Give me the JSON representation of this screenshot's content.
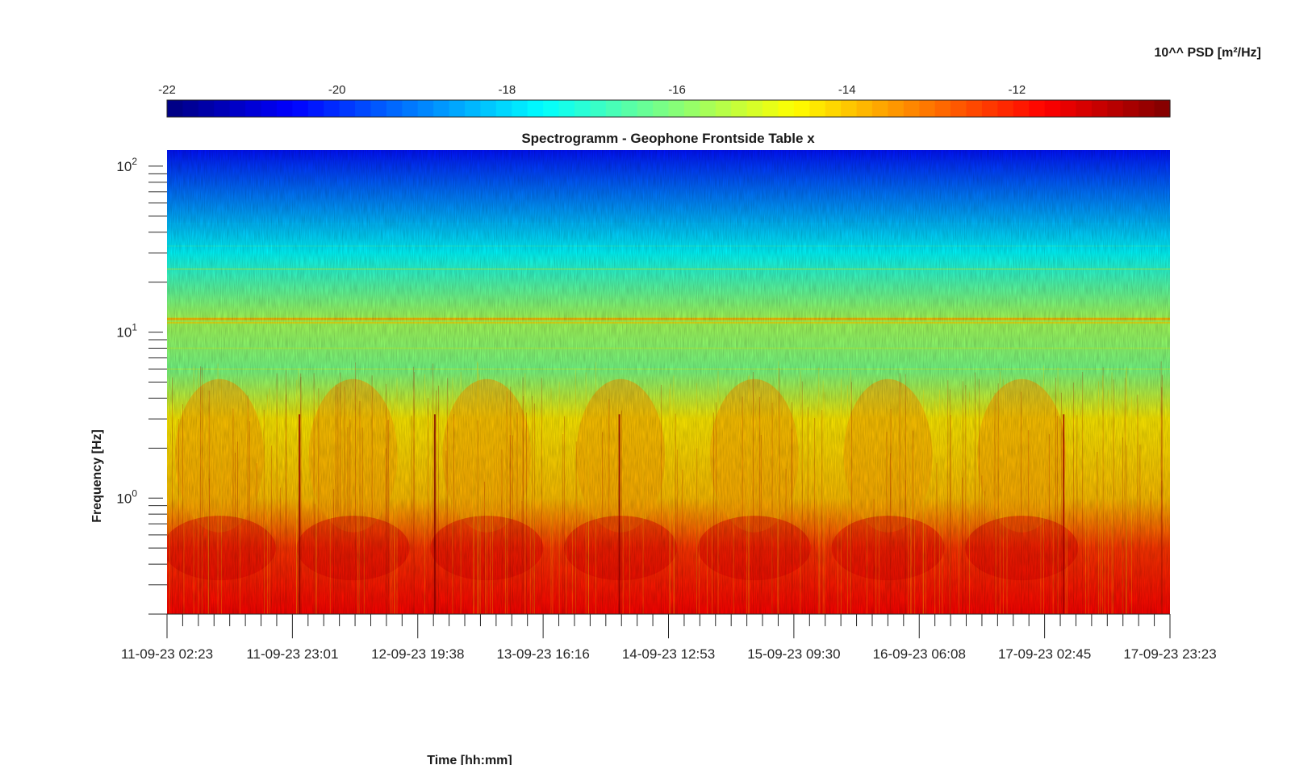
{
  "chart_data": {
    "type": "heatmap",
    "title": "Spectrogramm - Geophone Frontside Table x",
    "xlabel": "Time [hh:mm]",
    "ylabel": "Frequency [Hz]",
    "colorbar_label": "10^^ PSD [m²/Hz]",
    "colormap": "jet",
    "colorbar_position": "top",
    "colorbar_ticks": [
      "-22",
      "-20",
      "-18",
      "-16",
      "-14",
      "-12"
    ],
    "colorbar_range": [
      -22,
      -10.2
    ],
    "y_scale": "log",
    "ylim": [
      0.2,
      125
    ],
    "y_ticks": [
      {
        "base": "10",
        "exp": "2",
        "value": 100
      },
      {
        "base": "10",
        "exp": "1",
        "value": 10
      },
      {
        "base": "10",
        "exp": "0",
        "value": 1
      }
    ],
    "x_tick_labels": [
      "11-09-23 02:23",
      "11-09-23 23:01",
      "12-09-23 19:38",
      "13-09-23 16:16",
      "14-09-23 12:53",
      "15-09-23 09:30",
      "16-09-23 06:08",
      "17-09-23 02:45",
      "17-09-23 23:23"
    ],
    "frequency_bands_hz": [
      0.2,
      0.5,
      1,
      3,
      6,
      12,
      30,
      125
    ],
    "psd_log10_profile": [
      -11.7,
      -12.3,
      -13.9,
      -14.4,
      -16.2,
      -15.6,
      -17.6,
      -20.3
    ],
    "activity_peaks_x": [
      "11-09-23 11:00",
      "12-09-23 09:00",
      "13-09-23 07:00",
      "14-09-23 05:00",
      "15-09-23 03:00",
      "16-09-23 01:00",
      "16-09-23 23:00"
    ],
    "grid": false
  }
}
